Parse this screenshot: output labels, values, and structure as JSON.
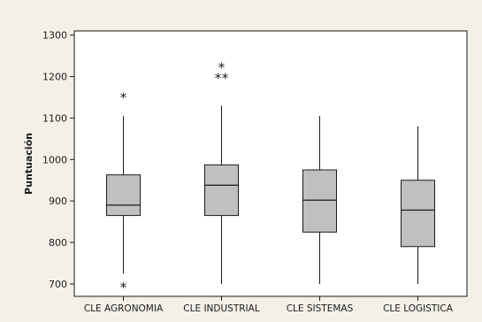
{
  "chart_data": {
    "type": "boxplot",
    "ylabel": "Puntuación",
    "ylim": [
      670,
      1310
    ],
    "yticks": [
      700,
      800,
      900,
      1000,
      1100,
      1200,
      1300
    ],
    "grid": false,
    "categories": [
      "CLE AGRONOMIA",
      "CLE INDUSTRIAL",
      "CLE SISTEMAS",
      "CLE LOGISTICA"
    ],
    "series": [
      {
        "category": "CLE AGRONOMIA",
        "whisker_low": 725,
        "q1": 865,
        "median": 890,
        "q3": 963,
        "whisker_high": 1105,
        "outliers": [
          1155,
          698
        ]
      },
      {
        "category": "CLE INDUSTRIAL",
        "whisker_low": 700,
        "q1": 865,
        "median": 938,
        "q3": 987,
        "whisker_high": 1130,
        "outliers": [
          1228,
          1202,
          1202
        ]
      },
      {
        "category": "CLE SISTEMAS",
        "whisker_low": 700,
        "q1": 825,
        "median": 902,
        "q3": 975,
        "whisker_high": 1105,
        "outliers": []
      },
      {
        "category": "CLE LOGISTICA",
        "whisker_low": 700,
        "q1": 790,
        "median": 878,
        "q3": 950,
        "whisker_high": 1080,
        "outliers": []
      }
    ],
    "colors": {
      "background": "#f3f1e7",
      "plot": "#ffffff",
      "box_fill": "#c0c0c0",
      "line": "#1a1a1a"
    }
  }
}
